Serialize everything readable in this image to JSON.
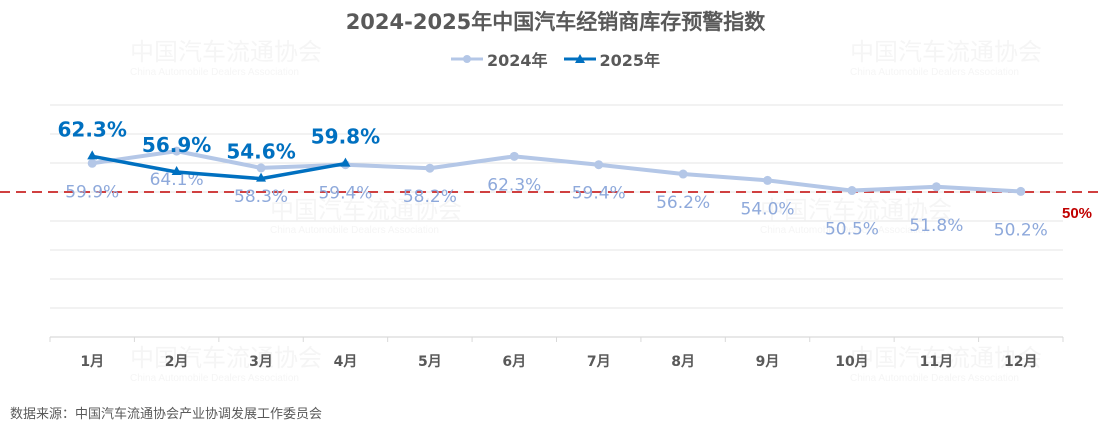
{
  "title": "2024-2025年中国汽车经销商库存预警指数",
  "legend": [
    {
      "label": "2024年",
      "color": "#B4C7E7",
      "marker": "circle"
    },
    {
      "label": "2025年",
      "color": "#0070C0",
      "marker": "triangle"
    }
  ],
  "threshold": {
    "label": "50%",
    "value": 50,
    "color": "#C00000"
  },
  "source": "数据来源：中国汽车流通协会产业协调发展工作委员会",
  "watermark": {
    "cn": "中国汽车流通协会",
    "en": "China Automobile Dealers Association"
  },
  "chart_data": {
    "type": "line",
    "title": "2024-2025年中国汽车经销商库存预警指数",
    "categories": [
      "1月",
      "2月",
      "3月",
      "4月",
      "5月",
      "6月",
      "7月",
      "8月",
      "9月",
      "10月",
      "11月",
      "12月"
    ],
    "series": [
      {
        "name": "2024年",
        "values": [
          59.9,
          64.1,
          58.3,
          59.4,
          58.2,
          62.3,
          59.4,
          56.2,
          54.0,
          50.5,
          51.8,
          50.2
        ]
      },
      {
        "name": "2025年",
        "values": [
          62.3,
          56.9,
          54.6,
          59.8
        ]
      }
    ],
    "reference_line": {
      "value": 50,
      "label": "50%",
      "style": "dashed"
    },
    "ylim": [
      0,
      80
    ],
    "grid": true,
    "legend_position": "top",
    "xlabel": "",
    "ylabel": ""
  }
}
